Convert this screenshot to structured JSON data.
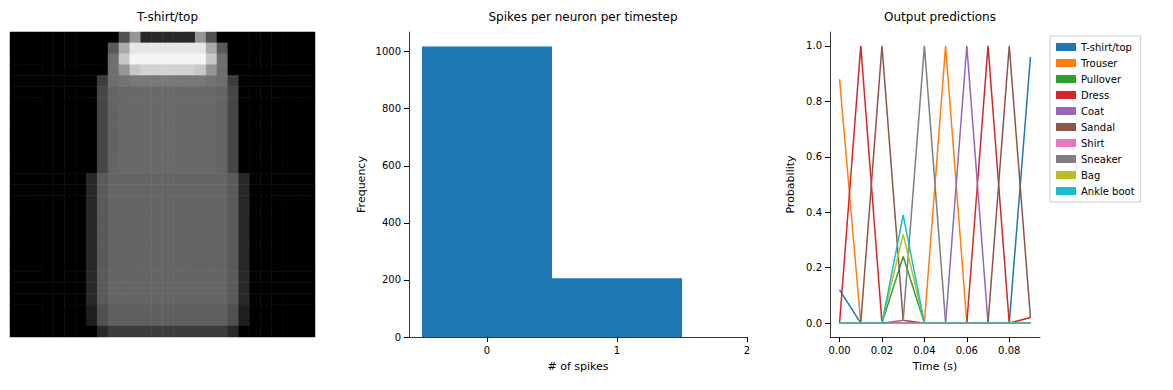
{
  "chart_data": [
    {
      "type": "heatmap",
      "title": "T-shirt/top",
      "value_range": [
        0,
        255
      ],
      "tick_labels": false,
      "cells": [
        [
          0,
          0,
          0,
          0,
          0,
          0,
          0,
          0,
          0,
          0,
          80,
          150,
          40,
          40,
          40,
          40,
          40,
          150,
          80,
          0,
          0,
          0,
          0,
          0,
          0,
          0,
          0,
          0
        ],
        [
          0,
          0,
          0,
          0,
          0,
          0,
          0,
          0,
          0,
          90,
          170,
          230,
          230,
          230,
          230,
          230,
          230,
          230,
          170,
          90,
          0,
          0,
          0,
          0,
          0,
          0,
          0,
          0
        ],
        [
          0,
          0,
          0,
          0,
          0,
          0,
          0,
          0,
          0,
          110,
          200,
          245,
          245,
          245,
          245,
          245,
          245,
          245,
          200,
          110,
          0,
          0,
          0,
          0,
          0,
          0,
          0,
          0
        ],
        [
          0,
          0,
          0,
          0,
          0,
          0,
          0,
          0,
          0,
          110,
          150,
          200,
          210,
          210,
          210,
          210,
          210,
          200,
          150,
          110,
          0,
          0,
          0,
          0,
          0,
          0,
          0,
          0
        ],
        [
          0,
          0,
          0,
          0,
          0,
          0,
          0,
          0,
          60,
          110,
          115,
          120,
          120,
          120,
          120,
          120,
          120,
          120,
          115,
          110,
          60,
          0,
          0,
          0,
          0,
          0,
          0,
          0
        ],
        [
          0,
          0,
          0,
          0,
          0,
          0,
          0,
          0,
          70,
          100,
          105,
          105,
          105,
          105,
          105,
          105,
          105,
          105,
          105,
          100,
          70,
          0,
          0,
          0,
          0,
          0,
          0,
          0
        ],
        [
          0,
          0,
          0,
          0,
          0,
          0,
          0,
          0,
          70,
          100,
          105,
          105,
          105,
          105,
          105,
          105,
          105,
          105,
          105,
          100,
          70,
          0,
          0,
          0,
          0,
          0,
          0,
          0
        ],
        [
          0,
          0,
          0,
          0,
          0,
          0,
          0,
          0,
          70,
          100,
          105,
          105,
          105,
          105,
          105,
          105,
          105,
          105,
          105,
          100,
          70,
          0,
          0,
          0,
          0,
          0,
          0,
          0
        ],
        [
          0,
          0,
          0,
          0,
          0,
          0,
          0,
          0,
          70,
          100,
          105,
          105,
          105,
          105,
          105,
          105,
          105,
          105,
          105,
          100,
          70,
          0,
          0,
          0,
          0,
          0,
          0,
          0
        ],
        [
          0,
          0,
          0,
          0,
          0,
          0,
          0,
          0,
          70,
          100,
          105,
          105,
          105,
          105,
          105,
          105,
          105,
          105,
          105,
          100,
          70,
          0,
          0,
          0,
          0,
          0,
          0,
          0
        ],
        [
          0,
          0,
          0,
          0,
          0,
          0,
          0,
          0,
          70,
          100,
          105,
          105,
          105,
          105,
          105,
          105,
          105,
          105,
          105,
          100,
          70,
          0,
          0,
          0,
          0,
          0,
          0,
          0
        ],
        [
          0,
          0,
          0,
          0,
          0,
          0,
          0,
          0,
          70,
          100,
          105,
          105,
          105,
          105,
          105,
          105,
          105,
          105,
          105,
          100,
          70,
          0,
          0,
          0,
          0,
          0,
          0,
          0
        ],
        [
          0,
          0,
          0,
          0,
          0,
          0,
          0,
          0,
          70,
          100,
          105,
          105,
          105,
          105,
          105,
          105,
          105,
          105,
          105,
          100,
          70,
          0,
          0,
          0,
          0,
          0,
          0,
          0
        ],
        [
          0,
          0,
          0,
          0,
          0,
          0,
          0,
          40,
          90,
          100,
          100,
          100,
          100,
          100,
          100,
          100,
          100,
          100,
          100,
          100,
          90,
          40,
          0,
          0,
          0,
          0,
          0,
          0
        ],
        [
          0,
          0,
          0,
          0,
          0,
          0,
          0,
          40,
          90,
          100,
          100,
          100,
          100,
          100,
          100,
          100,
          100,
          100,
          100,
          100,
          90,
          40,
          0,
          0,
          0,
          0,
          0,
          0
        ],
        [
          0,
          0,
          0,
          0,
          0,
          0,
          0,
          40,
          90,
          100,
          100,
          100,
          100,
          100,
          100,
          100,
          100,
          100,
          100,
          100,
          90,
          40,
          0,
          0,
          0,
          0,
          0,
          0
        ],
        [
          0,
          0,
          0,
          0,
          0,
          0,
          0,
          40,
          90,
          100,
          100,
          100,
          100,
          100,
          100,
          100,
          100,
          100,
          100,
          100,
          90,
          40,
          0,
          0,
          0,
          0,
          0,
          0
        ],
        [
          0,
          0,
          0,
          0,
          0,
          0,
          0,
          40,
          90,
          100,
          100,
          100,
          100,
          100,
          100,
          100,
          100,
          100,
          100,
          100,
          90,
          40,
          0,
          0,
          0,
          0,
          0,
          0
        ],
        [
          0,
          0,
          0,
          0,
          0,
          0,
          0,
          40,
          90,
          100,
          100,
          100,
          100,
          100,
          100,
          100,
          100,
          100,
          100,
          100,
          90,
          40,
          0,
          0,
          0,
          0,
          0,
          0
        ],
        [
          0,
          0,
          0,
          0,
          0,
          0,
          0,
          40,
          90,
          100,
          100,
          100,
          100,
          100,
          100,
          100,
          100,
          100,
          100,
          100,
          90,
          40,
          0,
          0,
          0,
          0,
          0,
          0
        ],
        [
          0,
          0,
          0,
          0,
          0,
          0,
          0,
          40,
          90,
          100,
          100,
          100,
          100,
          100,
          100,
          100,
          100,
          100,
          100,
          100,
          90,
          40,
          0,
          0,
          0,
          0,
          0,
          0
        ],
        [
          0,
          0,
          0,
          0,
          0,
          0,
          0,
          40,
          90,
          100,
          100,
          100,
          100,
          100,
          100,
          100,
          100,
          100,
          100,
          100,
          90,
          40,
          0,
          0,
          0,
          0,
          0,
          0
        ],
        [
          0,
          0,
          0,
          0,
          0,
          0,
          0,
          40,
          90,
          100,
          100,
          100,
          100,
          100,
          100,
          100,
          100,
          100,
          100,
          100,
          90,
          40,
          0,
          0,
          0,
          0,
          0,
          0
        ],
        [
          0,
          0,
          0,
          0,
          0,
          0,
          0,
          40,
          90,
          100,
          100,
          100,
          100,
          100,
          100,
          100,
          100,
          100,
          100,
          100,
          90,
          40,
          0,
          0,
          0,
          0,
          0,
          0
        ],
        [
          0,
          0,
          0,
          0,
          0,
          0,
          0,
          40,
          90,
          100,
          100,
          100,
          100,
          100,
          100,
          100,
          100,
          100,
          100,
          100,
          90,
          40,
          0,
          0,
          0,
          0,
          0,
          0
        ],
        [
          0,
          0,
          0,
          0,
          0,
          0,
          0,
          30,
          80,
          95,
          95,
          95,
          95,
          95,
          95,
          95,
          95,
          95,
          95,
          95,
          80,
          30,
          0,
          0,
          0,
          0,
          0,
          0
        ],
        [
          0,
          0,
          0,
          0,
          0,
          0,
          0,
          30,
          80,
          95,
          95,
          95,
          95,
          95,
          95,
          95,
          95,
          95,
          95,
          95,
          80,
          30,
          0,
          0,
          0,
          0,
          0,
          0
        ],
        [
          0,
          0,
          0,
          0,
          0,
          0,
          0,
          0,
          40,
          60,
          60,
          60,
          60,
          60,
          60,
          60,
          60,
          60,
          60,
          60,
          40,
          0,
          0,
          0,
          0,
          0,
          0,
          0
        ]
      ]
    },
    {
      "type": "histogram",
      "title": "Spikes per neuron per timestep",
      "x_label": "# of spikes",
      "y_label": "Frequency",
      "bins": [
        -0.5,
        0.5,
        1.5
      ],
      "counts": [
        1018,
        206
      ],
      "color": "#1f77b4",
      "xlim": [
        -0.6,
        2.0
      ],
      "xticks": [
        0,
        1,
        2
      ],
      "ylim": [
        0,
        1069
      ],
      "yticks": [
        0,
        200,
        400,
        600,
        800,
        1000
      ]
    },
    {
      "type": "line",
      "title": "Output predictions",
      "x_label": "Time (s)",
      "y_label": "Probability",
      "x": [
        0,
        0.01,
        0.02,
        0.03,
        0.04,
        0.05,
        0.06,
        0.07,
        0.08,
        0.09
      ],
      "series": [
        {
          "name": "T-shirt/top",
          "color": "#1f77b4",
          "values": [
            0.12,
            0,
            0,
            0,
            0,
            0,
            0,
            0,
            0,
            0.96
          ]
        },
        {
          "name": "Trouser",
          "color": "#ff7f0e",
          "values": [
            0.88,
            0,
            0,
            0,
            0,
            1,
            0,
            0,
            0,
            0
          ]
        },
        {
          "name": "Pullover",
          "color": "#2ca02c",
          "values": [
            0,
            0,
            0,
            0.24,
            0,
            0,
            0,
            0,
            0,
            0
          ]
        },
        {
          "name": "Dress",
          "color": "#d62728",
          "values": [
            0,
            1,
            0,
            0,
            0,
            0,
            0,
            1,
            0,
            0.02
          ]
        },
        {
          "name": "Coat",
          "color": "#9467bd",
          "values": [
            0,
            0,
            0,
            0,
            0,
            0,
            1,
            0,
            0,
            0
          ]
        },
        {
          "name": "Sandal",
          "color": "#8c564b",
          "values": [
            0,
            0,
            1,
            0.01,
            0,
            0,
            0,
            0,
            1,
            0.02
          ]
        },
        {
          "name": "Shirt",
          "color": "#e377c2",
          "values": [
            0,
            0,
            0,
            0,
            0,
            0,
            0,
            0,
            0,
            0
          ]
        },
        {
          "name": "Sneaker",
          "color": "#7f7f7f",
          "values": [
            0,
            0,
            0,
            0.01,
            1,
            0,
            0,
            0,
            0,
            0
          ]
        },
        {
          "name": "Bag",
          "color": "#bcbd22",
          "values": [
            0,
            0,
            0,
            0.32,
            0,
            0,
            0,
            0,
            0,
            0
          ]
        },
        {
          "name": "Ankle boot",
          "color": "#17becf",
          "values": [
            0,
            0,
            0,
            0.39,
            0,
            0,
            0,
            0,
            0,
            0
          ]
        }
      ],
      "xlim": [
        -0.0045,
        0.0945
      ],
      "xticks": [
        {
          "value": 0,
          "label": "0.00"
        },
        {
          "value": 0.02,
          "label": "0.02"
        },
        {
          "value": 0.04,
          "label": "0.04"
        },
        {
          "value": 0.06,
          "label": "0.06"
        },
        {
          "value": 0.08,
          "label": "0.08"
        }
      ],
      "ylim": [
        -0.05,
        1.05
      ],
      "yticks": [
        {
          "value": 0,
          "label": "0.0"
        },
        {
          "value": 0.2,
          "label": "0.2"
        },
        {
          "value": 0.4,
          "label": "0.4"
        },
        {
          "value": 0.6,
          "label": "0.6"
        },
        {
          "value": 0.8,
          "label": "0.8"
        },
        {
          "value": 1,
          "label": "1.0"
        }
      ],
      "legend": "right"
    }
  ]
}
